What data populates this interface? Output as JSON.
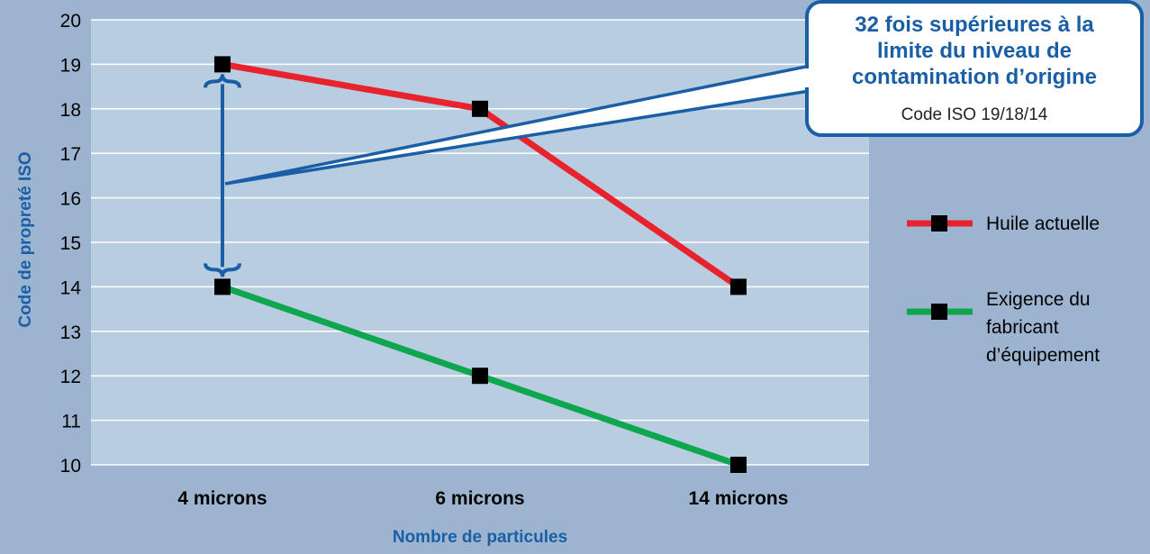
{
  "chart_data": {
    "type": "line",
    "categories": [
      "4 microns",
      "6 microns",
      "14 microns"
    ],
    "series": [
      {
        "name": "Huile actuelle",
        "values": [
          19,
          18,
          14
        ],
        "color": "#e8232e"
      },
      {
        "name": "Exigence du fabricant d’équipement",
        "name_lines": [
          "Exigence du",
          "fabricant",
          "d’équipement"
        ],
        "values": [
          14,
          12,
          10
        ],
        "color": "#0fa650"
      }
    ],
    "xlabel": "Nombre de particules",
    "ylabel": "Code de propreté ISO",
    "ylim": [
      10,
      20
    ],
    "yticks": [
      "10",
      "11",
      "12",
      "13",
      "14",
      "15",
      "16",
      "17",
      "18",
      "19",
      "20"
    ],
    "grid": true,
    "legend_position": "right",
    "annotation": {
      "lines": [
        "32 fois supérieures à la",
        "limite du niveau de",
        "contamination d’origine"
      ],
      "sub": "Code ISO 19/18/14",
      "color": "#1a5fa6"
    },
    "plot_bg": "#b9cde0",
    "page_bg": "#9db4d0",
    "marker_color": "#000000"
  }
}
